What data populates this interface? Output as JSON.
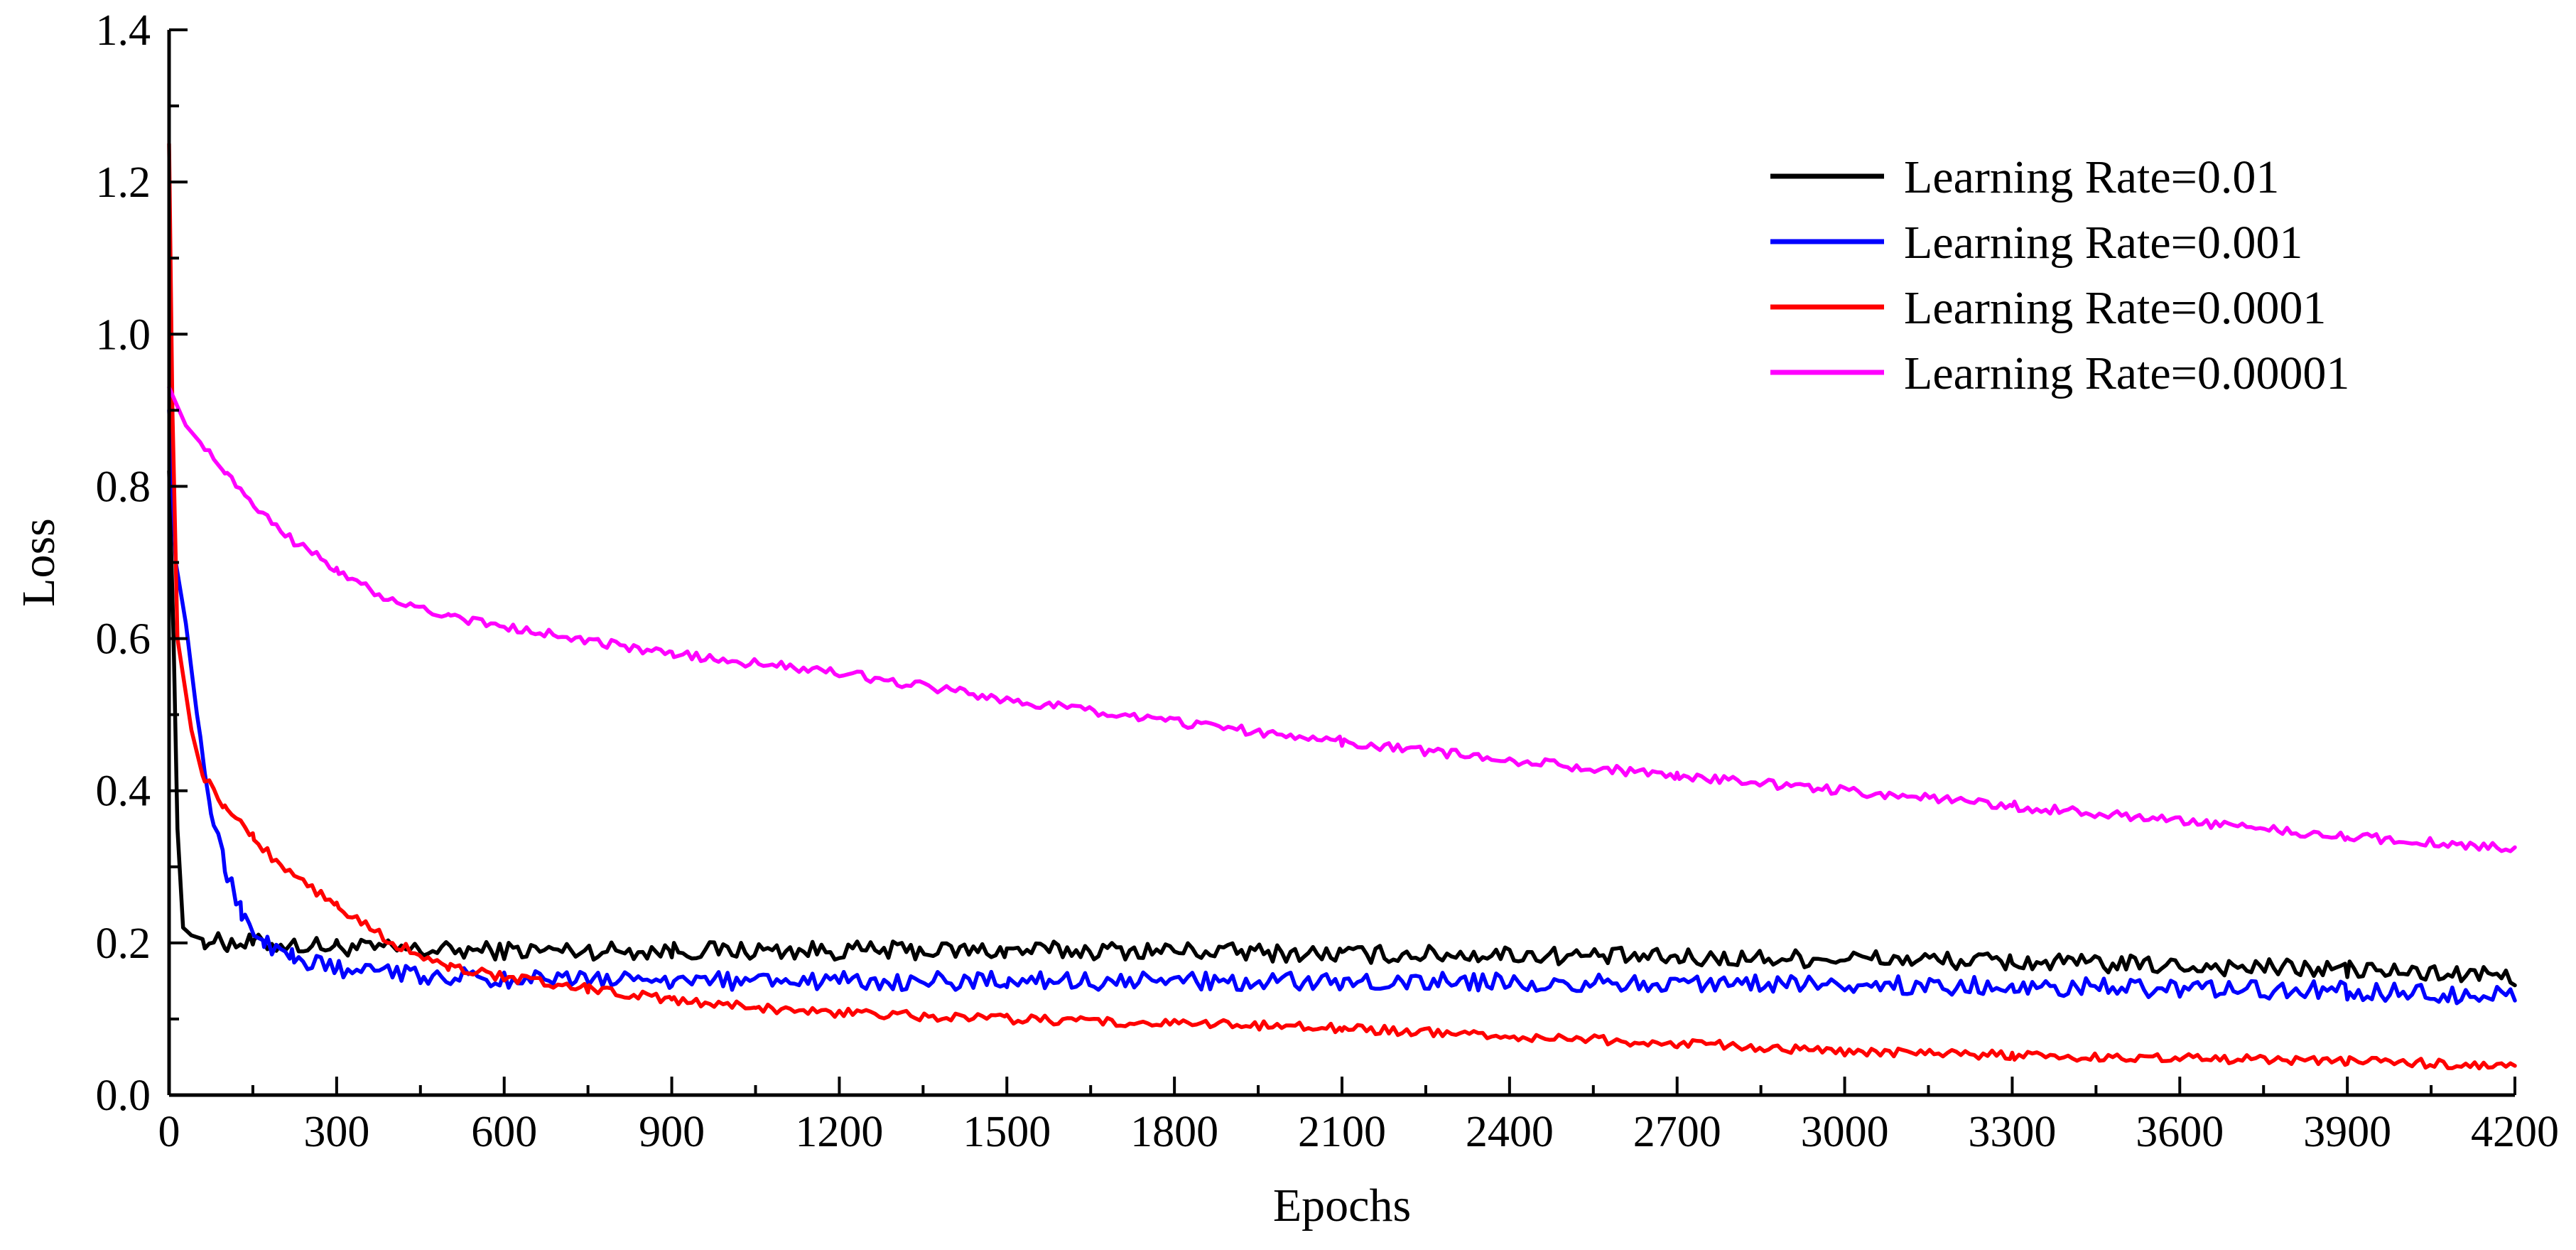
{
  "chart_data": {
    "type": "line",
    "title": "",
    "xlabel": "Epochs",
    "ylabel": "Loss",
    "xlim": [
      0,
      4200
    ],
    "ylim": [
      0,
      1.4
    ],
    "x_major_ticks": [
      "0",
      "300",
      "600",
      "900",
      "1200",
      "1500",
      "1800",
      "2100",
      "2400",
      "2700",
      "3000",
      "3300",
      "3600",
      "3900",
      "4200"
    ],
    "y_major_ticks": [
      "0.0",
      "0.2",
      "0.4",
      "0.6",
      "0.8",
      "1.0",
      "1.2",
      "1.4"
    ],
    "grid": false,
    "legend_position": "top-right",
    "series": [
      {
        "name": "Learning Rate=0.01",
        "color": "#000000",
        "points": [
          [
            0,
            0.82
          ],
          [
            8,
            0.6
          ],
          [
            15,
            0.35
          ],
          [
            25,
            0.22
          ],
          [
            40,
            0.21
          ],
          [
            60,
            0.205
          ],
          [
            100,
            0.2
          ],
          [
            150,
            0.2
          ],
          [
            200,
            0.198
          ],
          [
            300,
            0.195
          ],
          [
            450,
            0.19
          ],
          [
            600,
            0.19
          ],
          [
            900,
            0.19
          ],
          [
            1200,
            0.19
          ],
          [
            1500,
            0.19
          ],
          [
            1800,
            0.19
          ],
          [
            2100,
            0.185
          ],
          [
            2400,
            0.185
          ],
          [
            2700,
            0.18
          ],
          [
            3000,
            0.18
          ],
          [
            3300,
            0.175
          ],
          [
            3600,
            0.17
          ],
          [
            3900,
            0.165
          ],
          [
            4200,
            0.155
          ]
        ],
        "noise": 0.012
      },
      {
        "name": "Learning Rate=0.001",
        "color": "#0000ff",
        "points": [
          [
            0,
            0.9
          ],
          [
            12,
            0.7
          ],
          [
            30,
            0.62
          ],
          [
            50,
            0.5
          ],
          [
            75,
            0.38
          ],
          [
            100,
            0.3
          ],
          [
            130,
            0.24
          ],
          [
            170,
            0.2
          ],
          [
            220,
            0.18
          ],
          [
            300,
            0.165
          ],
          [
            450,
            0.158
          ],
          [
            600,
            0.152
          ],
          [
            900,
            0.15
          ],
          [
            1200,
            0.15
          ],
          [
            1500,
            0.15
          ],
          [
            1800,
            0.15
          ],
          [
            2100,
            0.15
          ],
          [
            2400,
            0.148
          ],
          [
            2700,
            0.148
          ],
          [
            3000,
            0.145
          ],
          [
            3300,
            0.143
          ],
          [
            3600,
            0.14
          ],
          [
            3900,
            0.137
          ],
          [
            4200,
            0.13
          ]
        ],
        "noise": 0.012
      },
      {
        "name": "Learning Rate=0.0001",
        "color": "#ff0000",
        "points": [
          [
            0,
            1.25
          ],
          [
            6,
            0.9
          ],
          [
            15,
            0.6
          ],
          [
            40,
            0.48
          ],
          [
            60,
            0.42
          ],
          [
            100,
            0.38
          ],
          [
            150,
            0.34
          ],
          [
            200,
            0.3
          ],
          [
            300,
            0.25
          ],
          [
            400,
            0.2
          ],
          [
            500,
            0.17
          ],
          [
            600,
            0.155
          ],
          [
            750,
            0.14
          ],
          [
            900,
            0.125
          ],
          [
            1050,
            0.115
          ],
          [
            1200,
            0.108
          ],
          [
            1500,
            0.1
          ],
          [
            1800,
            0.095
          ],
          [
            2100,
            0.088
          ],
          [
            2400,
            0.078
          ],
          [
            2700,
            0.068
          ],
          [
            3000,
            0.058
          ],
          [
            3300,
            0.052
          ],
          [
            3600,
            0.048
          ],
          [
            3900,
            0.045
          ],
          [
            4200,
            0.038
          ]
        ],
        "noise": 0.006
      },
      {
        "name": "Learning Rate=0.00001",
        "color": "#ff00ff",
        "points": [
          [
            0,
            0.93
          ],
          [
            30,
            0.88
          ],
          [
            100,
            0.82
          ],
          [
            200,
            0.74
          ],
          [
            300,
            0.69
          ],
          [
            400,
            0.65
          ],
          [
            500,
            0.63
          ],
          [
            600,
            0.615
          ],
          [
            900,
            0.58
          ],
          [
            1200,
            0.555
          ],
          [
            1500,
            0.52
          ],
          [
            1800,
            0.49
          ],
          [
            2100,
            0.465
          ],
          [
            2400,
            0.44
          ],
          [
            2700,
            0.42
          ],
          [
            3000,
            0.4
          ],
          [
            3300,
            0.38
          ],
          [
            3600,
            0.36
          ],
          [
            3900,
            0.34
          ],
          [
            4200,
            0.325
          ]
        ],
        "noise": 0.006
      }
    ]
  }
}
